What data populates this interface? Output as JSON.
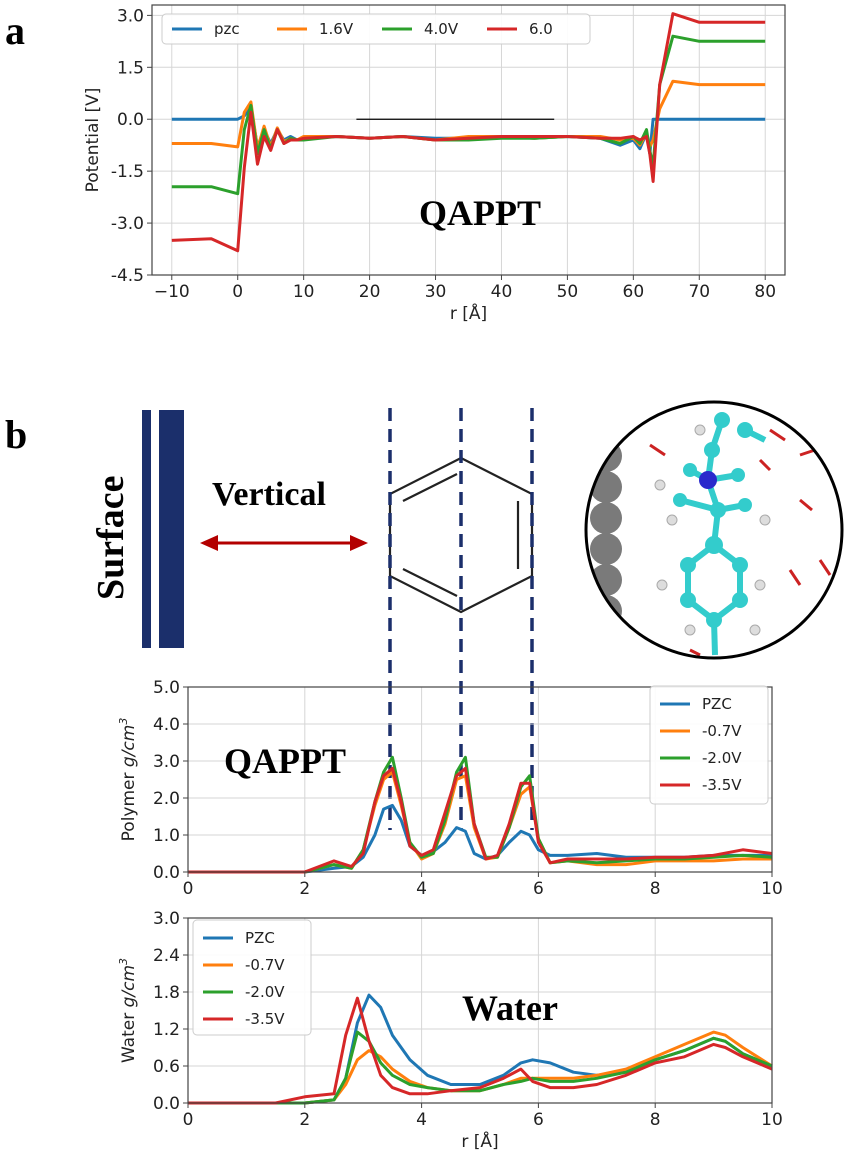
{
  "panel_a_label": "a",
  "panel_b_label": "b",
  "surface_label": "Surface",
  "vertical_label": "Vertical",
  "colors": {
    "blue": "#1f77b4",
    "orange": "#ff7f0e",
    "green": "#2ca02c",
    "red": "#d62728",
    "navy": "#1b2f6b",
    "arrow": "#b30000"
  },
  "chart_data": [
    {
      "type": "line",
      "annotation": "QAPPT",
      "xlabel": "r [Å]",
      "ylabel": "Potential  [V]",
      "xlim": [
        -13,
        83
      ],
      "ylim": [
        -4.5,
        3.3
      ],
      "xticks": [
        -10,
        0,
        10,
        20,
        30,
        40,
        50,
        60,
        70,
        80
      ],
      "xtick_labels": [
        "−10",
        "0",
        "10",
        "20",
        "30",
        "40",
        "50",
        "60",
        "70",
        "80"
      ],
      "yticks": [
        -4.5,
        -3.0,
        -1.5,
        0.0,
        1.5,
        3.0
      ],
      "ytick_labels": [
        "-4.5",
        "-3.0",
        "-1.5",
        "0.0",
        "1.5",
        "3.0"
      ],
      "grid": true,
      "legend": "top, horizontal",
      "reference_line": {
        "x": [
          18,
          48
        ],
        "y": 0.0
      },
      "series": [
        {
          "name": "pzc",
          "color": "#1f77b4",
          "x": [
            -10,
            -4,
            0,
            1,
            2,
            3,
            4,
            5,
            6,
            7,
            8,
            9,
            10,
            15,
            20,
            25,
            30,
            35,
            40,
            45,
            50,
            55,
            58,
            60,
            61,
            62,
            62.5,
            63,
            64,
            66,
            70,
            80
          ],
          "y": [
            0,
            0,
            0,
            0.1,
            0.35,
            -0.8,
            -0.3,
            -0.7,
            -0.3,
            -0.6,
            -0.5,
            -0.6,
            -0.55,
            -0.5,
            -0.55,
            -0.5,
            -0.55,
            -0.55,
            -0.5,
            -0.55,
            -0.5,
            -0.55,
            -0.75,
            -0.6,
            -0.85,
            -0.4,
            -1.0,
            0,
            0,
            0,
            0,
            0
          ]
        },
        {
          "name": "1.6V",
          "color": "#ff7f0e",
          "x": [
            -10,
            -4,
            0,
            1,
            2,
            3,
            4,
            5,
            6,
            7,
            8,
            9,
            10,
            15,
            20,
            25,
            30,
            35,
            40,
            45,
            50,
            55,
            58,
            60,
            61,
            62,
            62.5,
            63,
            64,
            66,
            70,
            80
          ],
          "y": [
            -0.7,
            -0.7,
            -0.8,
            0.2,
            0.5,
            -0.85,
            -0.2,
            -0.8,
            -0.25,
            -0.65,
            -0.55,
            -0.6,
            -0.5,
            -0.5,
            -0.55,
            -0.5,
            -0.6,
            -0.5,
            -0.5,
            -0.55,
            -0.5,
            -0.5,
            -0.6,
            -0.55,
            -0.75,
            -0.4,
            -0.8,
            -0.6,
            0.3,
            1.1,
            1.0,
            1.0
          ]
        },
        {
          "name": "4.0V",
          "color": "#2ca02c",
          "x": [
            -10,
            -4,
            0,
            1,
            2,
            3,
            4,
            5,
            6,
            7,
            8,
            9,
            10,
            15,
            20,
            25,
            30,
            35,
            40,
            45,
            50,
            55,
            58,
            60,
            61,
            62,
            62.5,
            63,
            64,
            66,
            70,
            80
          ],
          "y": [
            -1.95,
            -1.95,
            -2.15,
            -0.3,
            0.4,
            -1.0,
            -0.3,
            -0.85,
            -0.3,
            -0.7,
            -0.55,
            -0.6,
            -0.6,
            -0.5,
            -0.55,
            -0.5,
            -0.6,
            -0.6,
            -0.55,
            -0.55,
            -0.5,
            -0.55,
            -0.7,
            -0.5,
            -0.7,
            -0.3,
            -0.9,
            -1.35,
            1.0,
            2.4,
            2.25,
            2.25
          ]
        },
        {
          "name": "6.0",
          "color": "#d62728",
          "x": [
            -10,
            -4,
            0,
            1,
            2,
            3,
            4,
            5,
            6,
            7,
            8,
            9,
            10,
            15,
            20,
            25,
            30,
            35,
            40,
            45,
            50,
            55,
            58,
            60,
            61,
            62,
            62.5,
            63,
            64,
            66,
            70,
            80
          ],
          "y": [
            -3.5,
            -3.45,
            -3.8,
            -1.4,
            0.2,
            -1.3,
            -0.5,
            -0.9,
            -0.3,
            -0.7,
            -0.6,
            -0.6,
            -0.55,
            -0.5,
            -0.55,
            -0.5,
            -0.6,
            -0.55,
            -0.5,
            -0.5,
            -0.5,
            -0.55,
            -0.55,
            -0.5,
            -0.6,
            -0.5,
            -1.0,
            -1.8,
            1.0,
            3.05,
            2.8,
            2.8
          ]
        }
      ]
    },
    {
      "type": "line",
      "annotation": "QAPPT",
      "xlabel": "",
      "ylabel": "Polymer g/cm³",
      "ylabel_parts": {
        "text": "Polymer ",
        "unit": "g/cm",
        "sup": "3"
      },
      "xlim": [
        0,
        10
      ],
      "ylim": [
        0,
        5.0
      ],
      "xticks": [
        0,
        2,
        4,
        6,
        8,
        10
      ],
      "yticks": [
        0.0,
        1.0,
        2.0,
        3.0,
        4.0,
        5.0
      ],
      "ytick_labels": [
        "0.0",
        "1.0",
        "2.0",
        "3.0",
        "4.0",
        "5.0"
      ],
      "grid": true,
      "legend": "top-right",
      "series": [
        {
          "name": "PZC",
          "color": "#1f77b4",
          "x": [
            0,
            1,
            2,
            2.5,
            2.8,
            3.0,
            3.2,
            3.35,
            3.5,
            3.65,
            3.8,
            4.0,
            4.2,
            4.4,
            4.6,
            4.75,
            4.9,
            5.1,
            5.3,
            5.5,
            5.7,
            5.85,
            6.0,
            6.2,
            6.5,
            7,
            7.5,
            8,
            8.5,
            9,
            9.5,
            10
          ],
          "y": [
            0,
            0,
            0,
            0.1,
            0.15,
            0.4,
            1.0,
            1.7,
            1.8,
            1.4,
            0.7,
            0.45,
            0.55,
            0.8,
            1.2,
            1.1,
            0.5,
            0.35,
            0.45,
            0.8,
            1.1,
            1.0,
            0.6,
            0.45,
            0.45,
            0.5,
            0.4,
            0.4,
            0.4,
            0.45,
            0.45,
            0.45
          ]
        },
        {
          "name": "-0.7V",
          "color": "#ff7f0e",
          "x": [
            0,
            1,
            2,
            2.5,
            2.8,
            3.0,
            3.2,
            3.35,
            3.5,
            3.65,
            3.8,
            4.0,
            4.2,
            4.4,
            4.6,
            4.75,
            4.9,
            5.1,
            5.3,
            5.5,
            5.7,
            5.85,
            6.0,
            6.2,
            6.5,
            7,
            7.5,
            8,
            8.5,
            9,
            9.5,
            10
          ],
          "y": [
            0,
            0,
            0,
            0.2,
            0.1,
            0.6,
            1.8,
            2.5,
            2.7,
            1.8,
            0.8,
            0.35,
            0.5,
            1.3,
            2.5,
            2.6,
            1.2,
            0.35,
            0.4,
            1.2,
            2.1,
            2.3,
            0.9,
            0.25,
            0.3,
            0.2,
            0.2,
            0.3,
            0.3,
            0.3,
            0.35,
            0.35
          ]
        },
        {
          "name": "-2.0V",
          "color": "#2ca02c",
          "x": [
            0,
            1,
            2,
            2.5,
            2.8,
            3.0,
            3.2,
            3.35,
            3.5,
            3.65,
            3.8,
            4.0,
            4.2,
            4.4,
            4.6,
            4.75,
            4.9,
            5.1,
            5.3,
            5.5,
            5.7,
            5.85,
            6.0,
            6.2,
            6.5,
            7,
            7.5,
            8,
            8.5,
            9,
            9.5,
            10
          ],
          "y": [
            0,
            0,
            0,
            0.2,
            0.1,
            0.6,
            1.9,
            2.7,
            3.1,
            2.0,
            0.8,
            0.4,
            0.5,
            1.4,
            2.7,
            3.1,
            1.3,
            0.4,
            0.4,
            1.2,
            2.3,
            2.6,
            0.9,
            0.25,
            0.3,
            0.25,
            0.3,
            0.35,
            0.35,
            0.4,
            0.45,
            0.4
          ]
        },
        {
          "name": "-3.5V",
          "color": "#d62728",
          "x": [
            0,
            1,
            2,
            2.5,
            2.8,
            3.0,
            3.2,
            3.35,
            3.5,
            3.65,
            3.8,
            4.0,
            4.2,
            4.4,
            4.6,
            4.75,
            4.9,
            5.1,
            5.3,
            5.5,
            5.7,
            5.85,
            6.0,
            6.2,
            6.5,
            7,
            7.5,
            8,
            8.5,
            9,
            9.5,
            10
          ],
          "y": [
            0,
            0,
            0,
            0.3,
            0.15,
            0.5,
            1.9,
            2.6,
            2.8,
            1.9,
            0.7,
            0.45,
            0.6,
            1.6,
            2.6,
            2.8,
            1.3,
            0.35,
            0.45,
            1.3,
            2.4,
            2.4,
            0.8,
            0.25,
            0.35,
            0.35,
            0.35,
            0.4,
            0.4,
            0.45,
            0.6,
            0.5
          ]
        }
      ]
    },
    {
      "type": "line",
      "annotation": "Water",
      "xlabel": "r [Å]",
      "ylabel": "Water g/cm³",
      "ylabel_parts": {
        "text": "Water ",
        "unit": "g/cm",
        "sup": "3"
      },
      "xlim": [
        0,
        10
      ],
      "ylim": [
        0,
        3.0
      ],
      "xticks": [
        0,
        2,
        4,
        6,
        8,
        10
      ],
      "yticks": [
        0.0,
        0.6,
        1.2,
        1.8,
        2.4,
        3.0
      ],
      "ytick_labels": [
        "0.0",
        "0.6",
        "1.2",
        "1.8",
        "2.4",
        "3.0"
      ],
      "grid": true,
      "legend": "top-left",
      "series": [
        {
          "name": "PZC",
          "color": "#1f77b4",
          "x": [
            0,
            1.5,
            2,
            2.5,
            2.7,
            2.9,
            3.1,
            3.3,
            3.5,
            3.8,
            4.1,
            4.5,
            5,
            5.4,
            5.7,
            5.9,
            6.2,
            6.6,
            7,
            7.5,
            8,
            8.5,
            9,
            9.2,
            9.5,
            10
          ],
          "y": [
            0,
            0,
            0,
            0.05,
            0.4,
            1.3,
            1.75,
            1.55,
            1.1,
            0.7,
            0.45,
            0.3,
            0.3,
            0.45,
            0.65,
            0.7,
            0.65,
            0.5,
            0.45,
            0.5,
            0.7,
            0.85,
            1.05,
            1.0,
            0.8,
            0.6
          ]
        },
        {
          "name": "-0.7V",
          "color": "#ff7f0e",
          "x": [
            0,
            1.5,
            2,
            2.5,
            2.7,
            2.9,
            3.1,
            3.3,
            3.5,
            3.8,
            4.1,
            4.5,
            5,
            5.4,
            5.7,
            5.9,
            6.2,
            6.6,
            7,
            7.5,
            8,
            8.5,
            9,
            9.2,
            9.5,
            10
          ],
          "y": [
            0,
            0,
            0,
            0.05,
            0.3,
            0.7,
            0.85,
            0.75,
            0.55,
            0.35,
            0.25,
            0.2,
            0.2,
            0.3,
            0.4,
            0.4,
            0.4,
            0.4,
            0.45,
            0.55,
            0.75,
            0.95,
            1.15,
            1.1,
            0.9,
            0.6
          ]
        },
        {
          "name": "-2.0V",
          "color": "#2ca02c",
          "x": [
            0,
            1.5,
            2,
            2.5,
            2.7,
            2.9,
            3.1,
            3.3,
            3.5,
            3.8,
            4.1,
            4.5,
            5,
            5.4,
            5.7,
            5.9,
            6.2,
            6.6,
            7,
            7.5,
            8,
            8.5,
            9,
            9.2,
            9.5,
            10
          ],
          "y": [
            0,
            0,
            0,
            0.05,
            0.4,
            1.15,
            1.0,
            0.65,
            0.45,
            0.3,
            0.25,
            0.2,
            0.2,
            0.3,
            0.35,
            0.4,
            0.35,
            0.35,
            0.4,
            0.5,
            0.7,
            0.85,
            1.05,
            1.0,
            0.8,
            0.6
          ]
        },
        {
          "name": "-3.5V",
          "color": "#d62728",
          "x": [
            0,
            1.5,
            2,
            2.5,
            2.7,
            2.9,
            3.1,
            3.3,
            3.5,
            3.8,
            4.1,
            4.5,
            5,
            5.4,
            5.7,
            5.9,
            6.2,
            6.6,
            7,
            7.5,
            8,
            8.5,
            9,
            9.2,
            9.5,
            10
          ],
          "y": [
            0,
            0,
            0.1,
            0.15,
            1.1,
            1.7,
            1.0,
            0.45,
            0.25,
            0.15,
            0.15,
            0.2,
            0.25,
            0.4,
            0.55,
            0.35,
            0.25,
            0.25,
            0.3,
            0.45,
            0.65,
            0.75,
            0.95,
            0.9,
            0.75,
            0.55
          ]
        }
      ]
    }
  ]
}
